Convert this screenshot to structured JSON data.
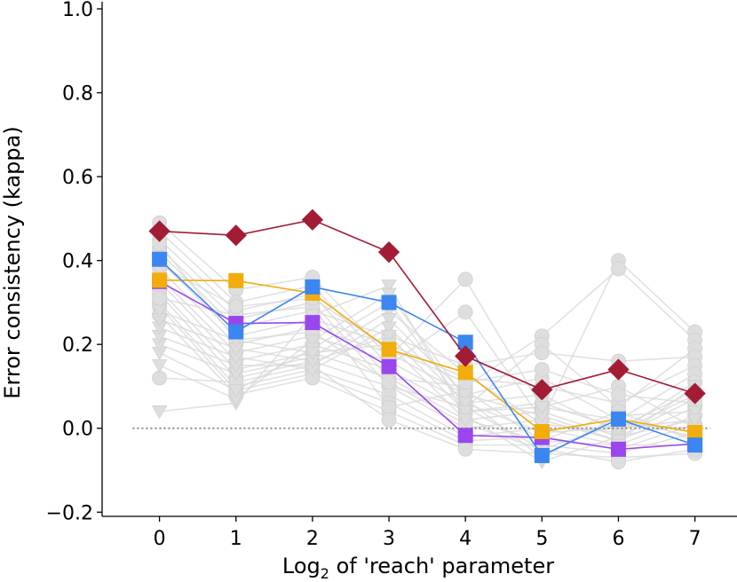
{
  "chart_data": {
    "type": "line",
    "title": "",
    "xlabel": "Log",
    "xlabel_sub": "2",
    "xlabel_rest": " of 'reach' parameter",
    "ylabel": "Error consistency (kappa)",
    "x": [
      0,
      1,
      2,
      3,
      4,
      5,
      6,
      7
    ],
    "x_tick_labels": [
      "0",
      "1",
      "2",
      "3",
      "4",
      "5",
      "6",
      "7"
    ],
    "y_ticks": [
      -0.2,
      0.0,
      0.2,
      0.4,
      0.6,
      0.8,
      1.0
    ],
    "y_tick_labels": [
      "−0.2",
      "0.0",
      "0.2",
      "0.4",
      "0.6",
      "0.8",
      "1.0"
    ],
    "xlim": [
      -0.75,
      7.55
    ],
    "ylim": [
      -0.21,
      1.0
    ],
    "reference_line": {
      "y": 0.0,
      "style": "dotted",
      "color": "#888888"
    },
    "highlighted_series": [
      {
        "name": "red",
        "color": "#a21c35",
        "marker": "diamond",
        "values": [
          0.47,
          0.46,
          0.497,
          0.42,
          0.172,
          0.092,
          0.14,
          0.083
        ]
      },
      {
        "name": "blue",
        "color": "#3b86f0",
        "marker": "square",
        "values": [
          0.403,
          0.23,
          0.337,
          0.3,
          0.205,
          -0.065,
          0.022,
          -0.04
        ]
      },
      {
        "name": "orange",
        "color": "#f2ad0c",
        "marker": "square",
        "values": [
          0.353,
          0.352,
          0.322,
          0.188,
          0.133,
          -0.008,
          0.022,
          -0.01
        ]
      },
      {
        "name": "purple",
        "color": "#9a46ed",
        "marker": "square",
        "values": [
          0.35,
          0.25,
          0.252,
          0.147,
          -0.017,
          -0.022,
          -0.05,
          -0.037
        ]
      }
    ],
    "background_series": [
      {
        "marker": "circle",
        "values": [
          0.49,
          0.33,
          0.36,
          0.17,
          0.355,
          0.05,
          0.1,
          0.0
        ]
      },
      {
        "marker": "circle",
        "values": [
          0.47,
          0.3,
          0.34,
          0.15,
          0.277,
          0.02,
          0.4,
          0.23
        ]
      },
      {
        "marker": "circle",
        "values": [
          0.45,
          0.28,
          0.32,
          0.12,
          0.1,
          0.22,
          0.38,
          0.21
        ]
      },
      {
        "marker": "circle",
        "values": [
          0.43,
          0.26,
          0.3,
          0.1,
          0.05,
          0.2,
          0.05,
          0.19
        ]
      },
      {
        "marker": "circle",
        "values": [
          0.42,
          0.24,
          0.28,
          0.22,
          0.15,
          0.18,
          0.16,
          0.17
        ]
      },
      {
        "marker": "circle",
        "values": [
          0.4,
          0.22,
          0.26,
          0.2,
          0.12,
          0.1,
          0.06,
          0.15
        ]
      },
      {
        "marker": "circle",
        "values": [
          0.38,
          0.2,
          0.24,
          0.18,
          0.08,
          0.12,
          0.02,
          0.13
        ]
      },
      {
        "marker": "circle",
        "values": [
          0.36,
          0.18,
          0.22,
          0.16,
          0.06,
          0.08,
          -0.01,
          0.11
        ]
      },
      {
        "marker": "circle",
        "values": [
          0.35,
          0.16,
          0.2,
          0.14,
          0.04,
          0.06,
          0.0,
          0.09
        ]
      },
      {
        "marker": "circle",
        "values": [
          0.33,
          0.14,
          0.18,
          0.12,
          0.02,
          0.04,
          -0.02,
          0.07
        ]
      },
      {
        "marker": "circle",
        "values": [
          0.32,
          0.12,
          0.16,
          0.1,
          0.0,
          0.02,
          -0.03,
          0.05
        ]
      },
      {
        "marker": "circle",
        "values": [
          0.3,
          0.1,
          0.14,
          0.08,
          -0.02,
          0.0,
          -0.04,
          0.03
        ]
      },
      {
        "marker": "circle",
        "values": [
          0.29,
          0.09,
          0.13,
          0.06,
          -0.03,
          -0.02,
          -0.05,
          0.01
        ]
      },
      {
        "marker": "circle",
        "values": [
          0.27,
          0.08,
          0.12,
          0.04,
          -0.04,
          -0.04,
          -0.06,
          -0.01
        ]
      },
      {
        "marker": "circle",
        "values": [
          0.31,
          0.27,
          0.29,
          0.05,
          0.09,
          -0.03,
          0.04,
          -0.03
        ]
      },
      {
        "marker": "circle",
        "values": [
          0.12,
          0.11,
          0.15,
          0.02,
          -0.05,
          -0.06,
          -0.07,
          -0.06
        ]
      },
      {
        "marker": "circle",
        "values": [
          0.39,
          0.29,
          0.31,
          0.19,
          0.11,
          0.14,
          0.08,
          0.06
        ]
      },
      {
        "marker": "circle",
        "values": [
          0.44,
          0.21,
          0.23,
          0.11,
          0.01,
          -0.05,
          -0.08,
          -0.05
        ]
      },
      {
        "marker": "triangle-down",
        "values": [
          0.04,
          0.06,
          0.27,
          0.34,
          0.03,
          -0.08,
          -0.02,
          0.02
        ]
      },
      {
        "marker": "triangle-down",
        "values": [
          0.15,
          0.07,
          0.21,
          0.32,
          0.07,
          -0.07,
          0.03,
          0.04
        ]
      },
      {
        "marker": "triangle-down",
        "values": [
          0.18,
          0.09,
          0.19,
          0.3,
          0.05,
          -0.05,
          0.01,
          0.0
        ]
      },
      {
        "marker": "triangle-down",
        "values": [
          0.2,
          0.13,
          0.17,
          0.28,
          0.13,
          0.01,
          -0.01,
          0.08
        ]
      },
      {
        "marker": "triangle-down",
        "values": [
          0.22,
          0.15,
          0.15,
          0.26,
          0.08,
          0.03,
          -0.03,
          0.1
        ]
      },
      {
        "marker": "triangle-down",
        "values": [
          0.24,
          0.17,
          0.14,
          0.24,
          0.06,
          -0.01,
          0.0,
          0.02
        ]
      },
      {
        "marker": "triangle-down",
        "values": [
          0.26,
          0.19,
          0.16,
          0.22,
          0.04,
          0.05,
          0.02,
          -0.02
        ]
      },
      {
        "marker": "triangle-down",
        "values": [
          0.28,
          0.21,
          0.18,
          0.2,
          0.02,
          -0.03,
          -0.04,
          -0.04
        ]
      }
    ]
  }
}
